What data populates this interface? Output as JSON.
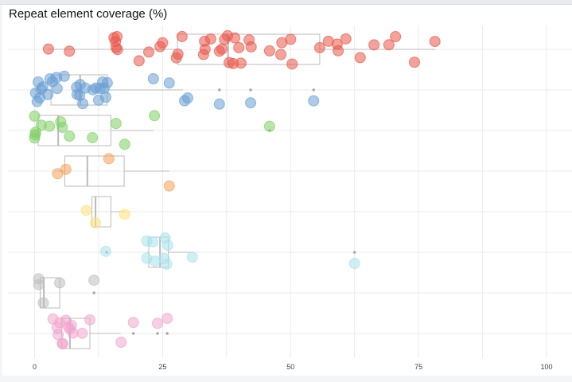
{
  "chart_data": {
    "type": "box",
    "title": "Repeat element coverage (%)",
    "xlim": [
      0,
      100
    ],
    "x_ticks": [
      0,
      25,
      50,
      75,
      100
    ],
    "grid": true,
    "orientation": "horizontal",
    "groups": [
      {
        "color": "#e8574a",
        "box": {
          "low": 2.6,
          "q1": 27.9,
          "median": 37.8,
          "q3": 55.7,
          "high": 78.2
        },
        "outliers": [],
        "points": [
          2.7,
          6.8,
          15.5,
          15.8,
          15.9,
          16.2,
          16.1,
          20.4,
          22.3,
          24.5,
          25.0,
          27.7,
          28.0,
          28.8,
          33.3,
          33.2,
          33.0,
          34.4,
          36.1,
          36.6,
          37.1,
          37.7,
          38.0,
          38.8,
          39.1,
          39.9,
          40.3,
          41.9,
          42.3,
          45.9,
          48.1,
          48.3,
          50.0,
          50.3,
          55.7,
          57.4,
          59.3,
          59.1,
          60.8,
          63.6,
          66.3,
          69.2,
          70.5,
          74.2,
          78.2
        ]
      },
      {
        "color": "#6a9fd4",
        "box": {
          "low": 0,
          "q1": 3.2,
          "median": 8.9,
          "q3": 14.2,
          "high": 29.0
        },
        "outliers": [
          36.1,
          42.2,
          54.5
        ],
        "points": [
          0.5,
          1.3,
          0.7,
          0.2,
          1.6,
          1.0,
          2.6,
          3.0,
          3.5,
          4.4,
          4.3,
          5.8,
          8.2,
          8.8,
          8.3,
          9.4,
          8.9,
          9.9,
          11.4,
          12.0,
          12.5,
          12.8,
          13.6,
          14.2,
          13.3,
          13.9,
          23.2,
          26.3,
          29.9,
          29.3,
          36.1,
          42.2,
          54.5
        ]
      },
      {
        "color": "#7fd065",
        "box": {
          "low": 0,
          "q1": 0.7,
          "median": 4.6,
          "q3": 14.9,
          "high": 23.2
        },
        "outliers": [
          45.9
        ],
        "points": [
          0,
          0.1,
          0.2,
          0,
          1.3,
          2.9,
          5.1,
          5.4,
          6.8,
          11.3,
          15.9,
          17.6,
          23.4,
          45.9
        ]
      },
      {
        "color": "#f5a35c",
        "box": {
          "low": 4.5,
          "q1": 5.9,
          "median": 10.3,
          "q3": 17.5,
          "high": 26.3
        },
        "outliers": [],
        "points": [
          4.5,
          6.1,
          14.5,
          26.3
        ]
      },
      {
        "color": "#ffe27a",
        "box": {
          "low": 11.2,
          "q1": 11.2,
          "median": 11.9,
          "q3": 14.9,
          "high": 17.6
        },
        "outliers": [],
        "points": [
          10.1,
          11.9,
          17.6
        ]
      },
      {
        "color": "#a8e2ec",
        "box": {
          "low": 22.0,
          "q1": 22.3,
          "median": 24.5,
          "q3": 26.1,
          "high": 30.8
        },
        "outliers": [
          14.1,
          62.5
        ],
        "points": [
          13.9,
          21.9,
          23.5,
          25.8,
          26.0,
          25.5,
          23.1,
          25.3,
          21.9,
          30.8,
          62.5
        ]
      },
      {
        "color": "#bdbdbd",
        "box": {
          "low": 1.1,
          "q1": 1.1,
          "median": 1.8,
          "q3": 4.9,
          "high": 4.9
        },
        "outliers": [
          11.6
        ],
        "points": [
          0.8,
          1.7,
          4.9,
          0.8,
          11.6
        ]
      },
      {
        "color": "#f0a6cc",
        "box": {
          "low": 3.7,
          "q1": 5.3,
          "median": 6.9,
          "q3": 10.8,
          "high": 16.8
        },
        "outliers": [
          19.3,
          24.0,
          25.9
        ],
        "points": [
          3.6,
          4.6,
          5.4,
          5.5,
          4.9,
          9.3,
          10.8,
          6.6,
          7.5,
          6.1,
          6.9,
          7.2,
          4.4,
          16.9,
          19.3,
          24.0,
          25.9
        ]
      }
    ]
  }
}
